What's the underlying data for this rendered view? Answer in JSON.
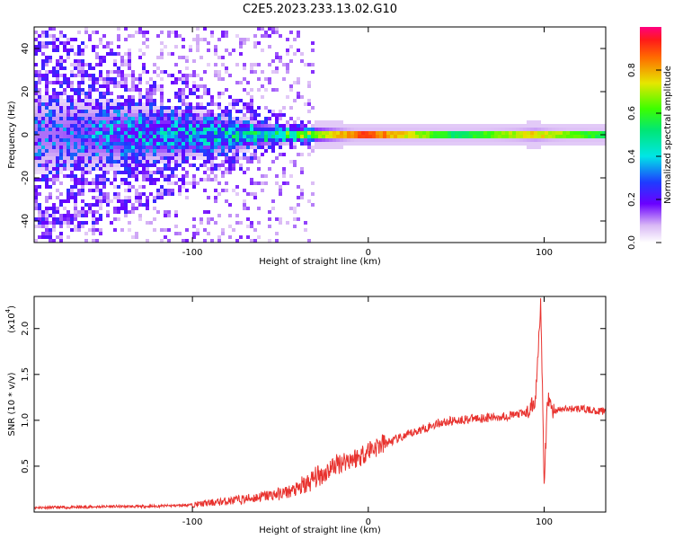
{
  "title": "C2E5.2023.233.13.02.G10",
  "colorbar": {
    "label": "Normalized spectral amplitude",
    "ticks": [
      "0.0",
      "0.2",
      "0.4",
      "0.6",
      "0.8"
    ]
  },
  "chart_data": [
    {
      "type": "heatmap",
      "xlabel": "Height of straight line (km)",
      "ylabel": "Frequency (Hz)",
      "xlim": [
        -190,
        135
      ],
      "ylim": [
        -50,
        50
      ],
      "xticks": [
        -100,
        0,
        100
      ],
      "xtick_labels": [
        "-100",
        "0",
        "100"
      ],
      "yticks": [
        -40,
        -20,
        0,
        20,
        40
      ],
      "ytick_labels": [
        "-40",
        "-20",
        "0",
        "20",
        "40"
      ],
      "colormap": "rainbow (0 white-purple to 1 red-magenta)",
      "value_range": [
        0,
        1
      ],
      "description_points": [
        {
          "x": -180,
          "spread_hz": 48,
          "peak": 0.15
        },
        {
          "x": -150,
          "spread_hz": 40,
          "peak": 0.2
        },
        {
          "x": -100,
          "spread_hz": 25,
          "peak": 0.3
        },
        {
          "x": -60,
          "spread_hz": 12,
          "peak": 0.45
        },
        {
          "x": -30,
          "spread_hz": 5,
          "peak": 0.7
        },
        {
          "x": 0,
          "spread_hz": 3,
          "peak": 0.95
        },
        {
          "x": 50,
          "spread_hz": 3,
          "peak": 0.55
        },
        {
          "x": 95,
          "spread_hz": 4,
          "peak": 0.8
        },
        {
          "x": 130,
          "spread_hz": 3,
          "peak": 0.6
        }
      ]
    },
    {
      "type": "line",
      "xlabel": "Height of straight line (km)",
      "ylabel": "SNR (10 * v/v)",
      "y_multiplier_label": "(x10",
      "y_multiplier_exp": "4",
      "y_multiplier_close": ")",
      "xlim": [
        -190,
        135
      ],
      "ylim": [
        0,
        2.35
      ],
      "xticks": [
        -100,
        0,
        100
      ],
      "xtick_labels": [
        "-100",
        "0",
        "100"
      ],
      "yticks": [
        0.5,
        1.0,
        1.5,
        2.0
      ],
      "ytick_labels": [
        "0.5",
        "1.0",
        "1.5",
        "2.0"
      ],
      "color": "#e8322e",
      "series": [
        {
          "x": [
            -190,
            -170,
            -150,
            -130,
            -110,
            -100,
            -90,
            -80,
            -70,
            -60,
            -50,
            -40,
            -35,
            -30,
            -25,
            -20,
            -15,
            -10,
            -5,
            0,
            10,
            20,
            30,
            40,
            50,
            60,
            70,
            80,
            90,
            95,
            98,
            100,
            102,
            105,
            110,
            120,
            130,
            135
          ],
          "y": [
            0.05,
            0.05,
            0.06,
            0.06,
            0.07,
            0.08,
            0.1,
            0.12,
            0.14,
            0.17,
            0.2,
            0.25,
            0.3,
            0.38,
            0.42,
            0.5,
            0.55,
            0.58,
            0.6,
            0.68,
            0.75,
            0.82,
            0.9,
            0.97,
            1.0,
            1.02,
            1.03,
            1.05,
            1.08,
            1.2,
            2.3,
            0.3,
            1.25,
            1.1,
            1.12,
            1.13,
            1.1,
            1.1
          ]
        }
      ]
    }
  ]
}
